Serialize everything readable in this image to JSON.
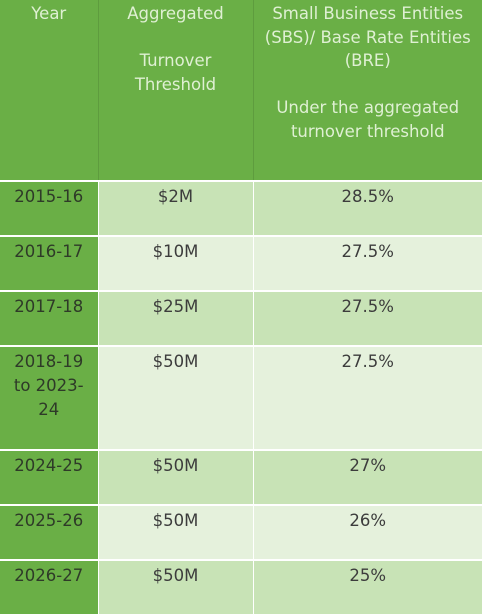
{
  "table": {
    "headers": {
      "year": "Year",
      "turnover": "Aggregated\n\nTurnover\nThreshold",
      "rate": "Small Business Entities\n(SBS)/ Base Rate Entities\n(BRE)\n\nUnder the aggregated\nturnover threshold"
    },
    "rows": [
      {
        "year": "2015-16",
        "threshold": "$2M",
        "rate": "28.5%"
      },
      {
        "year": "2016-17",
        "threshold": "$10M",
        "rate": "27.5%"
      },
      {
        "year": "2017-18",
        "threshold": "$25M",
        "rate": "27.5%"
      },
      {
        "year": "2018-19 to 2023-24",
        "threshold": "$50M",
        "rate": "27.5%"
      },
      {
        "year": "2024-25",
        "threshold": "$50M",
        "rate": "27%"
      },
      {
        "year": "2025-26",
        "threshold": "$50M",
        "rate": "26%"
      },
      {
        "year": "2026-27",
        "threshold": "$50M",
        "rate": "25%"
      }
    ]
  },
  "colors": {
    "header_bg": "#6aaf46",
    "header_text": "#dff0d3",
    "row_band_dark": "#c8e3b6",
    "row_band_light": "#e5f1dc"
  }
}
